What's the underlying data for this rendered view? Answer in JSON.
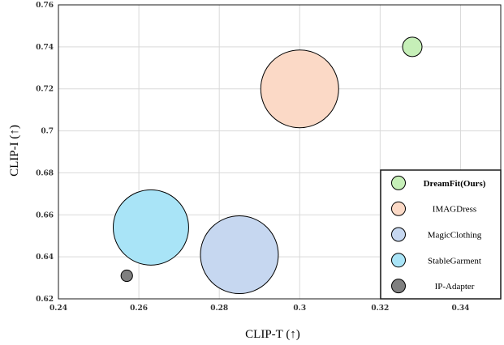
{
  "chart_data": {
    "type": "scatter",
    "xlabel": "CLIP-T (↑)",
    "ylabel": "CLIP-I (↑)",
    "xlim": [
      0.24,
      0.35
    ],
    "ylim": [
      0.62,
      0.76
    ],
    "x_ticks": [
      "0.24",
      "0.26",
      "0.28",
      "0.3",
      "0.32",
      "0.34"
    ],
    "x_tick_values": [
      0.24,
      0.26,
      0.28,
      0.3,
      0.32,
      0.34
    ],
    "y_ticks": [
      "0.76",
      "0.74",
      "0.72",
      "0.7",
      "0.68",
      "0.66",
      "0.64",
      "0.62"
    ],
    "y_tick_values": [
      0.76,
      0.74,
      0.72,
      0.7,
      0.68,
      0.66,
      0.64,
      0.62
    ],
    "grid": true,
    "legend_position": "bottom-right",
    "series": [
      {
        "name": "DreamFit(Ours)",
        "x": 0.328,
        "y": 0.74,
        "size": 1,
        "color": "#c6efb8",
        "bold": true
      },
      {
        "name": "IMAGDress",
        "x": 0.3,
        "y": 0.72,
        "size": 16,
        "color": "#fbd9c6",
        "bold": false
      },
      {
        "name": "MagicClothing",
        "x": 0.285,
        "y": 0.641,
        "size": 16,
        "color": "#c6d7f0",
        "bold": false
      },
      {
        "name": "StableGarment",
        "x": 0.263,
        "y": 0.654,
        "size": 15,
        "color": "#a9e4f7",
        "bold": false
      },
      {
        "name": "IP-Adapter",
        "x": 0.257,
        "y": 0.631,
        "size": 0.35,
        "color": "#7f7f7f",
        "bold": false
      }
    ]
  }
}
